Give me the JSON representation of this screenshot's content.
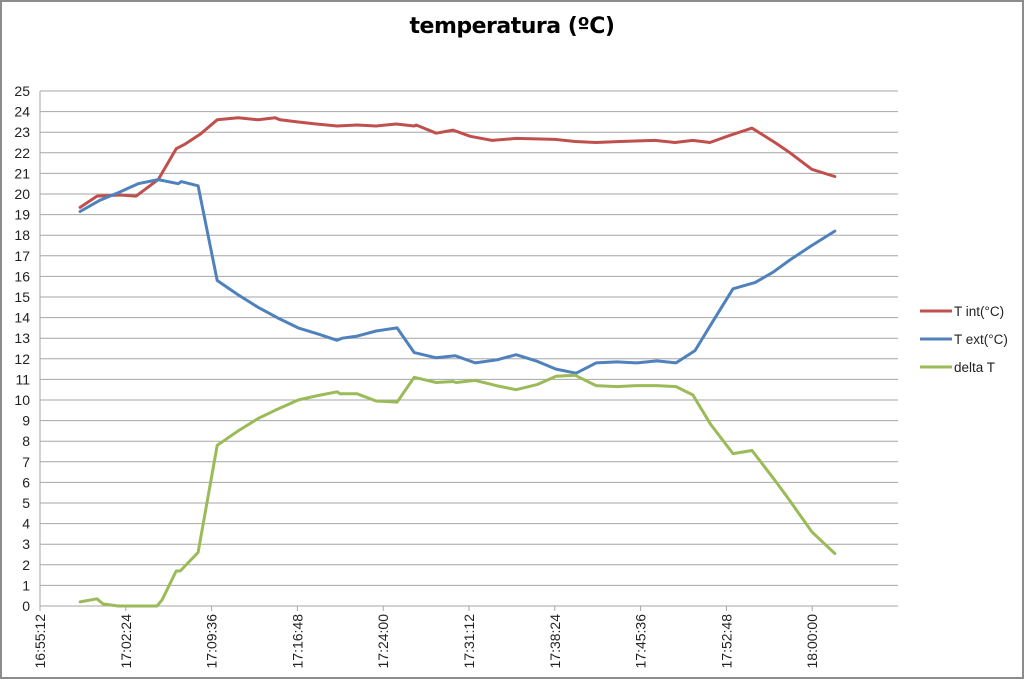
{
  "chart_data": {
    "type": "line",
    "title": "temperatura (ºC)",
    "xlabel": "",
    "ylabel": "",
    "ylim": [
      0,
      25
    ],
    "yticks": [
      0,
      1,
      2,
      3,
      4,
      5,
      6,
      7,
      8,
      9,
      10,
      11,
      12,
      13,
      14,
      15,
      16,
      17,
      18,
      19,
      20,
      21,
      22,
      23,
      24,
      25
    ],
    "xlim": [
      "16:55:12",
      "18:07:12"
    ],
    "xtick_labels": [
      "16:55:12",
      "17:02:24",
      "17:09:36",
      "17:16:48",
      "17:24:00",
      "17:31:12",
      "17:38:24",
      "17:45:36",
      "17:52:48",
      "18:00:00"
    ],
    "grid": "horizontal",
    "legend_position": "right",
    "series": [
      {
        "name": "T int(°C)",
        "color": "#c0504d",
        "points": [
          [
            "16:58:34",
            19.35
          ],
          [
            "16:59:59",
            19.9
          ],
          [
            "17:01:56",
            19.95
          ],
          [
            "17:03:16",
            19.9
          ],
          [
            "17:05:07",
            20.7
          ],
          [
            "17:06:38",
            22.2
          ],
          [
            "17:07:18",
            22.4
          ],
          [
            "17:08:38",
            22.9
          ],
          [
            "17:10:04",
            23.6
          ],
          [
            "17:11:50",
            23.7
          ],
          [
            "17:13:30",
            23.6
          ],
          [
            "17:14:56",
            23.7
          ],
          [
            "17:15:21",
            23.6
          ],
          [
            "17:16:47",
            23.5
          ],
          [
            "17:18:23",
            23.4
          ],
          [
            "17:20:08",
            23.3
          ],
          [
            "17:21:49",
            23.35
          ],
          [
            "17:23:24",
            23.3
          ],
          [
            "17:25:05",
            23.4
          ],
          [
            "17:26:36",
            23.3
          ],
          [
            "17:26:46",
            23.35
          ],
          [
            "17:28:27",
            22.95
          ],
          [
            "17:29:52",
            23.1
          ],
          [
            "17:31:18",
            22.8
          ],
          [
            "17:33:08",
            22.6
          ],
          [
            "17:35:09",
            22.7
          ],
          [
            "17:38:25",
            22.65
          ],
          [
            "17:40:06",
            22.55
          ],
          [
            "17:41:52",
            22.5
          ],
          [
            "17:43:52",
            22.55
          ],
          [
            "17:46:48",
            22.6
          ],
          [
            "17:48:29",
            22.5
          ],
          [
            "17:49:59",
            22.6
          ],
          [
            "17:51:25",
            22.5
          ],
          [
            "17:53:06",
            22.85
          ],
          [
            "17:54:57",
            23.2
          ],
          [
            "17:56:52",
            22.5
          ],
          [
            "17:58:08",
            22.0
          ],
          [
            "17:59:58",
            21.2
          ],
          [
            "18:01:54",
            20.85
          ]
        ]
      },
      {
        "name": "T ext(°C)",
        "color": "#4f81bd",
        "points": [
          [
            "16:58:34",
            19.15
          ],
          [
            "17:00:14",
            19.7
          ],
          [
            "17:01:56",
            20.1
          ],
          [
            "17:03:26",
            20.5
          ],
          [
            "17:05:07",
            20.7
          ],
          [
            "17:06:48",
            20.5
          ],
          [
            "17:07:03",
            20.6
          ],
          [
            "17:08:28",
            20.4
          ],
          [
            "17:10:04",
            15.8
          ],
          [
            "17:11:50",
            15.1
          ],
          [
            "17:13:30",
            14.5
          ],
          [
            "17:15:06",
            14.0
          ],
          [
            "17:16:52",
            13.5
          ],
          [
            "17:18:33",
            13.2
          ],
          [
            "17:20:08",
            12.9
          ],
          [
            "17:20:33",
            13.0
          ],
          [
            "17:21:49",
            13.1
          ],
          [
            "17:23:24",
            13.35
          ],
          [
            "17:25:10",
            13.5
          ],
          [
            "17:26:36",
            12.3
          ],
          [
            "17:28:27",
            12.05
          ],
          [
            "17:30:02",
            12.15
          ],
          [
            "17:31:43",
            11.8
          ],
          [
            "17:33:34",
            11.95
          ],
          [
            "17:35:09",
            12.2
          ],
          [
            "17:36:50",
            11.9
          ],
          [
            "17:38:30",
            11.5
          ],
          [
            "17:40:11",
            11.3
          ],
          [
            "17:41:52",
            11.8
          ],
          [
            "17:43:37",
            11.85
          ],
          [
            "17:45:18",
            11.8
          ],
          [
            "17:46:58",
            11.9
          ],
          [
            "17:48:34",
            11.8
          ],
          [
            "17:50:10",
            12.4
          ],
          [
            "17:51:45",
            13.9
          ],
          [
            "17:53:21",
            15.4
          ],
          [
            "17:54:36",
            15.6
          ],
          [
            "17:55:12",
            15.7
          ],
          [
            "17:56:42",
            16.2
          ],
          [
            "17:58:08",
            16.8
          ],
          [
            "17:59:58",
            17.5
          ],
          [
            "18:01:54",
            18.2
          ]
        ]
      },
      {
        "name": "delta T",
        "color": "#9bbb59",
        "points": [
          [
            "16:58:34",
            0.2
          ],
          [
            "16:59:59",
            0.35
          ],
          [
            "17:00:29",
            0.1
          ],
          [
            "17:01:45",
            0.0
          ],
          [
            "17:05:01",
            0.0
          ],
          [
            "17:05:27",
            0.3
          ],
          [
            "17:06:38",
            1.7
          ],
          [
            "17:06:58",
            1.7
          ],
          [
            "17:08:28",
            2.6
          ],
          [
            "17:10:04",
            7.8
          ],
          [
            "17:11:50",
            8.5
          ],
          [
            "17:13:30",
            9.1
          ],
          [
            "17:14:56",
            9.5
          ],
          [
            "17:16:52",
            10.0
          ],
          [
            "17:18:23",
            10.2
          ],
          [
            "17:20:08",
            10.4
          ],
          [
            "17:20:23",
            10.3
          ],
          [
            "17:21:49",
            10.3
          ],
          [
            "17:23:24",
            9.95
          ],
          [
            "17:25:10",
            9.9
          ],
          [
            "17:26:36",
            11.1
          ],
          [
            "17:28:27",
            10.85
          ],
          [
            "17:29:52",
            10.9
          ],
          [
            "17:30:07",
            10.85
          ],
          [
            "17:31:43",
            10.95
          ],
          [
            "17:33:29",
            10.7
          ],
          [
            "17:35:09",
            10.5
          ],
          [
            "17:36:55",
            10.75
          ],
          [
            "17:38:30",
            11.15
          ],
          [
            "17:40:06",
            11.2
          ],
          [
            "17:41:52",
            10.7
          ],
          [
            "17:43:37",
            10.65
          ],
          [
            "17:45:18",
            10.7
          ],
          [
            "17:46:58",
            10.7
          ],
          [
            "17:48:34",
            10.65
          ],
          [
            "17:49:59",
            10.25
          ],
          [
            "17:51:30",
            8.8
          ],
          [
            "17:53:21",
            7.4
          ],
          [
            "17:54:57",
            7.55
          ],
          [
            "17:56:52",
            6.1
          ],
          [
            "17:58:08",
            5.1
          ],
          [
            "17:59:58",
            3.6
          ],
          [
            "18:01:54",
            2.55
          ]
        ]
      }
    ]
  }
}
